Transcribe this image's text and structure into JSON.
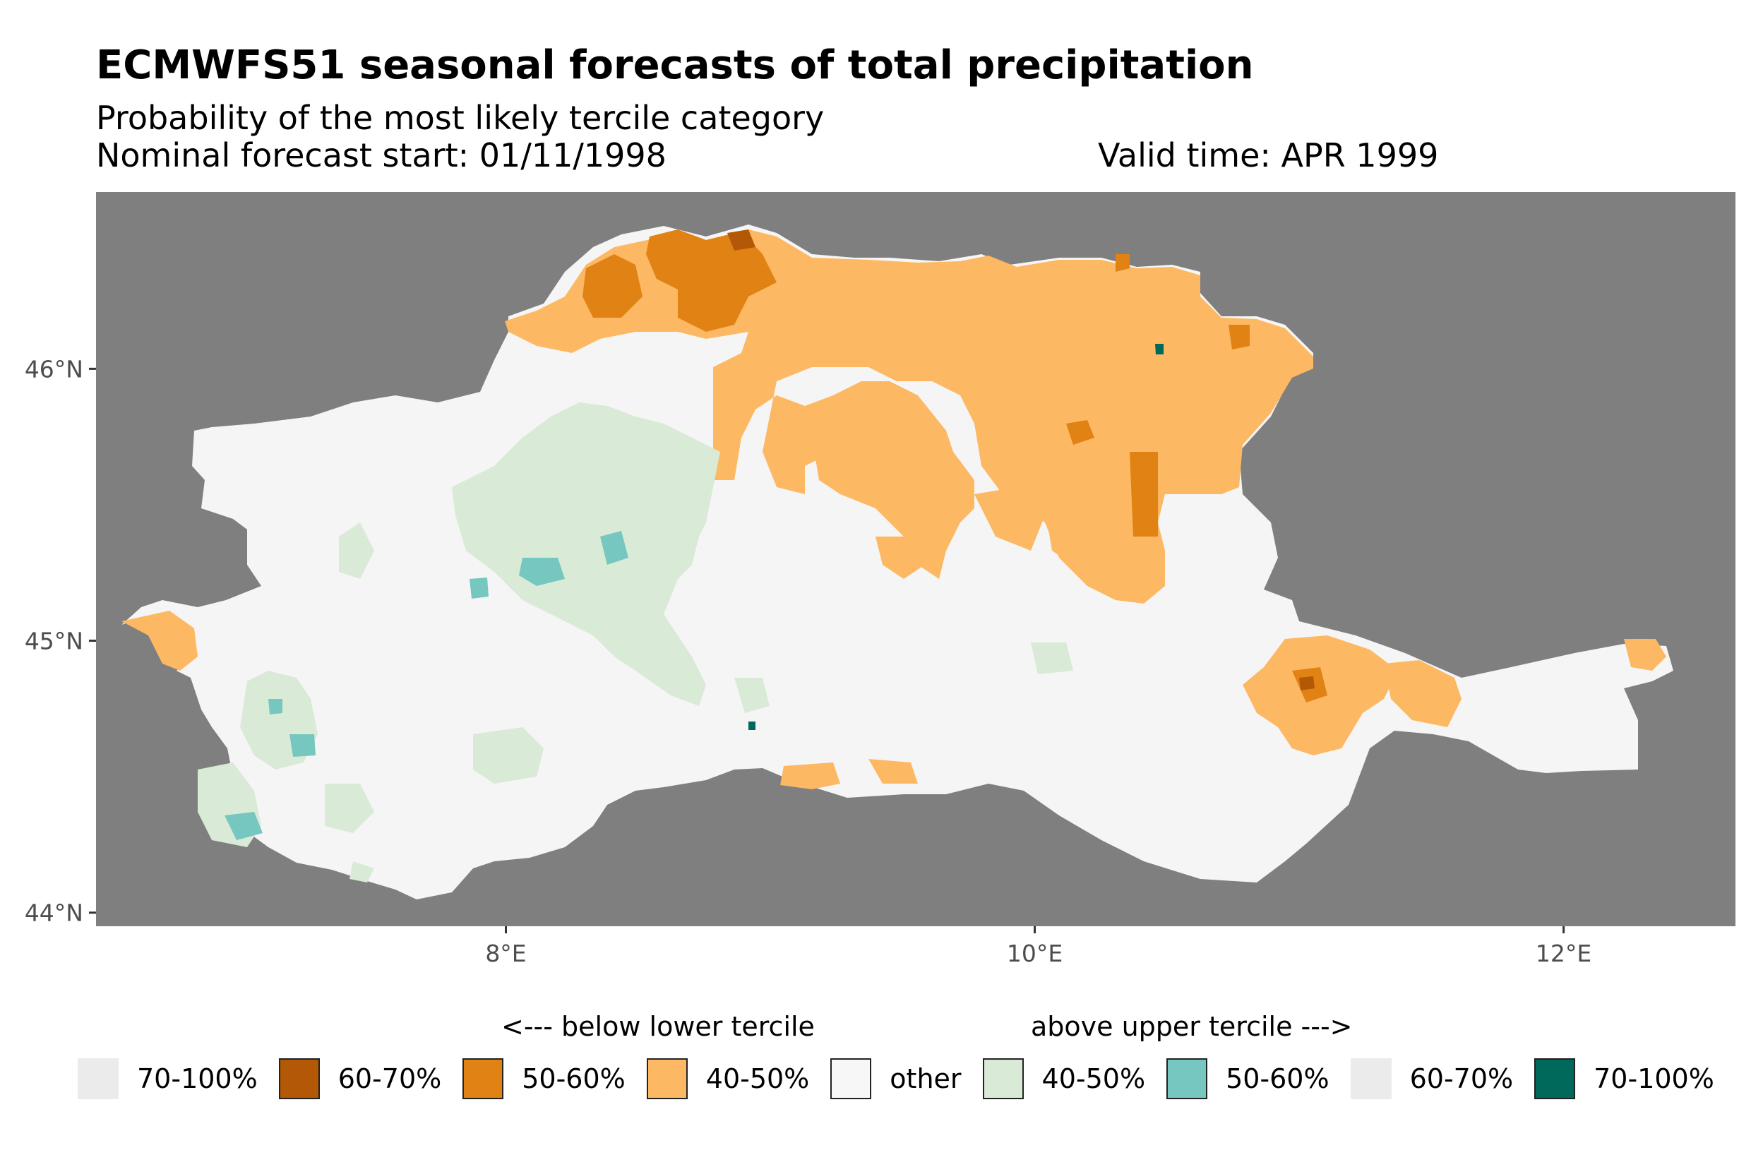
{
  "title": "ECMWFS51 seasonal forecasts of total precipitation",
  "subtitle": "Probability of the most likely tercile category",
  "forecast_start": "Nominal forecast start: 01/11/1998",
  "valid_time": "Valid time: APR 1999",
  "map": {
    "background_color": "#7f7f7f",
    "land_other_color": "#f5f5f5",
    "lat_ticks": [
      "46°N",
      "45°N",
      "44°N"
    ],
    "lon_ticks": [
      "8°E",
      "10°E",
      "12°E"
    ],
    "lat_range": [
      43.95,
      46.65
    ],
    "lon_range": [
      6.45,
      12.65
    ]
  },
  "legend": {
    "below_header": "<--- below lower tercile",
    "above_header": "above upper tercile --->",
    "items": [
      {
        "label": "70-100%",
        "color": "#ebebeb",
        "bordered": false
      },
      {
        "label": "60-70%",
        "color": "#b35806",
        "bordered": true
      },
      {
        "label": "50-60%",
        "color": "#e08214",
        "bordered": true
      },
      {
        "label": "40-50%",
        "color": "#fdb863",
        "bordered": true
      },
      {
        "label": "other",
        "color": "#f7f7f7",
        "bordered": true
      },
      {
        "label": "40-50%",
        "color": "#d9ead7",
        "bordered": true
      },
      {
        "label": "50-60%",
        "color": "#76c7c0",
        "bordered": true
      },
      {
        "label": "60-70%",
        "color": "#ebebeb",
        "bordered": false
      },
      {
        "label": "70-100%",
        "color": "#00695c",
        "bordered": true
      }
    ]
  }
}
